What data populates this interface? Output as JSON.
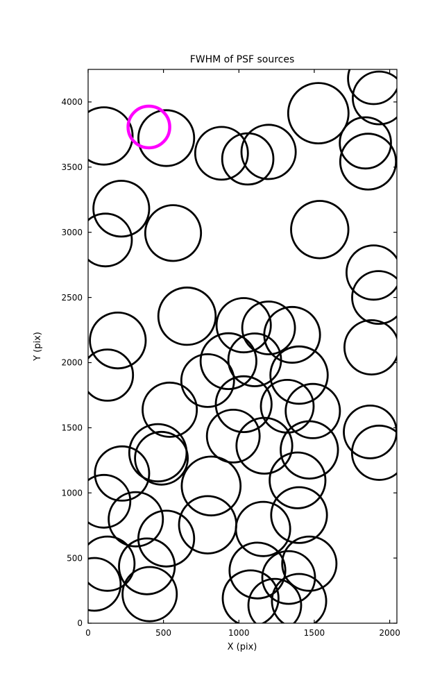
{
  "figure": {
    "background": "#ffffff",
    "frame_color": "#000000"
  },
  "chart_data": {
    "type": "scatter",
    "title": "FWHM of PSF sources",
    "xlabel": "X (pix)",
    "ylabel": "Y (pix)",
    "xlim": [
      0,
      2048
    ],
    "ylim": [
      0,
      4250
    ],
    "x_ticks": [
      0,
      500,
      1000,
      1500,
      2000
    ],
    "y_ticks": [
      0,
      500,
      1000,
      1500,
      2000,
      2500,
      3000,
      3500,
      4000
    ],
    "grid": false,
    "legend": "none",
    "marker_style": "open-circle",
    "edge_color": "#000000",
    "edge_width": 2.8,
    "highlight_color": "#ff00ff",
    "highlight_width": 4.5,
    "columns": [
      "x_pix",
      "y_pix",
      "radius_pix"
    ],
    "sources": [
      [
        105,
        3739,
        190
      ],
      [
        518,
        3723,
        185
      ],
      [
        885,
        3606,
        175
      ],
      [
        1059,
        3563,
        170
      ],
      [
        1197,
        3617,
        180
      ],
      [
        1527,
        3914,
        200
      ],
      [
        1894,
        4180,
        170
      ],
      [
        1930,
        4031,
        175
      ],
      [
        1839,
        3686,
        170
      ],
      [
        1857,
        3542,
        185
      ],
      [
        220,
        3181,
        185
      ],
      [
        115,
        2941,
        175
      ],
      [
        564,
        2994,
        185
      ],
      [
        1536,
        3021,
        190
      ],
      [
        1894,
        2691,
        180
      ],
      [
        1926,
        2500,
        175
      ],
      [
        656,
        2356,
        190
      ],
      [
        197,
        2170,
        185
      ],
      [
        1032,
        2287,
        180
      ],
      [
        1197,
        2266,
        175
      ],
      [
        1353,
        2213,
        185
      ],
      [
        128,
        1904,
        170
      ],
      [
        931,
        2011,
        185
      ],
      [
        1105,
        2021,
        175
      ],
      [
        1399,
        1904,
        190
      ],
      [
        1880,
        2117,
        180
      ],
      [
        793,
        1862,
        175
      ],
      [
        541,
        1638,
        180
      ],
      [
        1032,
        1681,
        185
      ],
      [
        1321,
        1665,
        175
      ],
      [
        1490,
        1628,
        180
      ],
      [
        963,
        1436,
        175
      ],
      [
        1169,
        1362,
        185
      ],
      [
        1467,
        1330,
        190
      ],
      [
        1871,
        1468,
        175
      ],
      [
        1930,
        1308,
        180
      ],
      [
        463,
        1308,
        190
      ],
      [
        486,
        1266,
        175
      ],
      [
        225,
        1149,
        180
      ],
      [
        816,
        1053,
        195
      ],
      [
        1389,
        1096,
        185
      ],
      [
        105,
        936,
        175
      ],
      [
        316,
        798,
        180
      ],
      [
        518,
        649,
        185
      ],
      [
        793,
        755,
        190
      ],
      [
        1160,
        723,
        180
      ],
      [
        1399,
        830,
        185
      ],
      [
        128,
        457,
        180
      ],
      [
        390,
        436,
        185
      ],
      [
        41,
        298,
        175
      ],
      [
        408,
        223,
        180
      ],
      [
        1123,
        404,
        185
      ],
      [
        1330,
        351,
        175
      ],
      [
        1467,
        457,
        180
      ],
      [
        1078,
        191,
        185
      ],
      [
        1238,
        138,
        175
      ],
      [
        1399,
        170,
        180
      ]
    ],
    "highlighted_source": {
      "x": 403,
      "y": 3808,
      "r": 138
    }
  }
}
